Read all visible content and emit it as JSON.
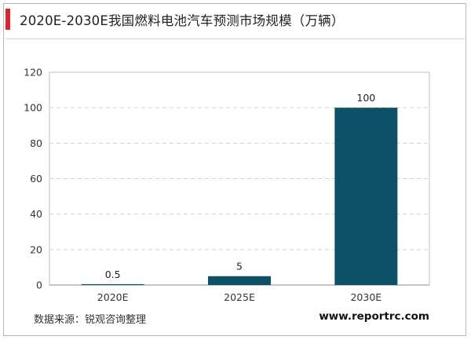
{
  "header": {
    "title": "2020E-2030E我国燃料电池汽车预测市场规模（万辆）"
  },
  "footer": {
    "source": "数据来源：锐观咨询整理",
    "website": "www.reportrc.com"
  },
  "colors": {
    "accent": "#d9272e",
    "bar": "#0d5169",
    "grid": "#d0d0d0"
  },
  "chart_data": {
    "type": "bar",
    "title": "2020E-2030E我国燃料电池汽车预测市场规模（万辆）",
    "categories": [
      "2020E",
      "2025E",
      "2030E"
    ],
    "values": [
      0.5,
      5,
      100
    ],
    "value_labels": [
      "0.5",
      "5",
      "100"
    ],
    "ylim": [
      0,
      120
    ],
    "yticks": [
      0,
      20,
      40,
      60,
      80,
      100,
      120
    ],
    "grid": true,
    "grid_style": "dashed",
    "legend": false
  }
}
